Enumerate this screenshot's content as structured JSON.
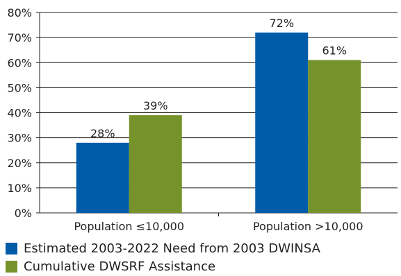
{
  "chart_data": {
    "type": "bar",
    "title": "",
    "xlabel": "",
    "ylabel": "",
    "ylim": [
      0,
      80
    ],
    "yticks": [
      0,
      10,
      20,
      30,
      40,
      50,
      60,
      70,
      80
    ],
    "ytick_labels": [
      "0%",
      "10%",
      "20%",
      "30%",
      "40%",
      "50%",
      "60%",
      "70%",
      "80%"
    ],
    "grid": "horizontal",
    "legend_position": "bottom",
    "categories": [
      "Population ≤10,000",
      "Population >10,000"
    ],
    "series": [
      {
        "name": "Estimated 2003-2022 Need from 2003 DWINSA",
        "color": "#005ca9",
        "values": [
          28,
          72
        ],
        "data_labels": [
          "28%",
          "72%"
        ]
      },
      {
        "name": "Cumulative DWSRF Assistance",
        "color": "#76922a",
        "values": [
          39,
          61
        ],
        "data_labels": [
          "39%",
          "61%"
        ]
      }
    ]
  }
}
